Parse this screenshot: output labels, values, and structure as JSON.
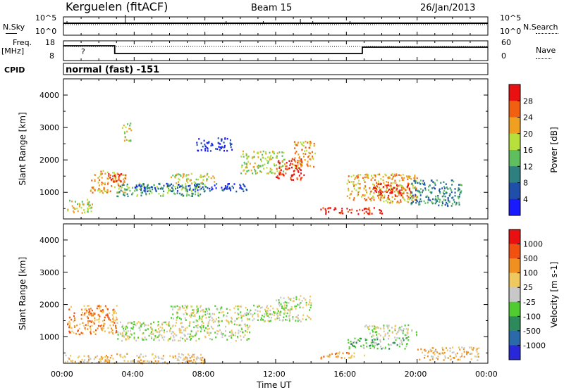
{
  "header": {
    "station": "Kerguelen (fitACF)",
    "beam": "Beam 15",
    "date": "26/Jan/2013"
  },
  "sky_panel": {
    "left_label": "N.Sky",
    "left_ticks": [
      "10^5",
      "10^0"
    ],
    "right_label": "N.Search",
    "right_ticks": [
      "10^5",
      "10^0"
    ]
  },
  "freq_panel": {
    "left_label_1": "Freq.",
    "left_label_2": "[MHz]",
    "left_ticks": [
      "18",
      "8"
    ],
    "right_label": "Nave",
    "right_ticks": [
      "60",
      "0"
    ],
    "question_mark": "?"
  },
  "cpid_panel": {
    "label": "CPID",
    "text": "normal (fast) -151"
  },
  "time_axis": {
    "ticks": [
      "00:00",
      "04:00",
      "08:00",
      "12:00",
      "16:00",
      "20:00",
      "00:00"
    ],
    "label": "Time UT"
  },
  "chart_data": [
    {
      "type": "heatmap",
      "name": "power-panel",
      "ylabel": "Slant Range [km]",
      "yticks": [
        1000,
        2000,
        3000,
        4000
      ],
      "ylim": [
        180,
        4500
      ],
      "xlim_hours": [
        0,
        24
      ],
      "colorbar": {
        "label": "Power [dB]",
        "ticks": [
          "4",
          "8",
          "12",
          "16",
          "20",
          "24",
          "28"
        ],
        "colors": [
          "#1a1aff",
          "#1f4fa8",
          "#2e7f7f",
          "#5fbf5f",
          "#b8e03c",
          "#f0a020",
          "#f06010",
          "#e81010"
        ]
      },
      "regions": [
        {
          "t0": 0.2,
          "t1": 1.6,
          "r0": 350,
          "r1": 800,
          "level": 4
        },
        {
          "t0": 1.5,
          "t1": 3.5,
          "r0": 1000,
          "r1": 1700,
          "level": 5
        },
        {
          "t0": 2.5,
          "t1": 3.3,
          "r0": 1300,
          "r1": 1600,
          "level": 7
        },
        {
          "t0": 3.0,
          "t1": 8.0,
          "r0": 900,
          "r1": 1300,
          "level": 3
        },
        {
          "t0": 4.0,
          "t1": 10.5,
          "r0": 1050,
          "r1": 1300,
          "level": 1
        },
        {
          "t0": 6.0,
          "t1": 8.5,
          "r0": 1300,
          "r1": 1600,
          "level": 4
        },
        {
          "t0": 10.0,
          "t1": 12.5,
          "r0": 1600,
          "r1": 2300,
          "level": 4
        },
        {
          "t0": 12.0,
          "t1": 13.6,
          "r0": 1400,
          "r1": 2100,
          "level": 7
        },
        {
          "t0": 13.0,
          "t1": 14.2,
          "r0": 1800,
          "r1": 2600,
          "level": 5
        },
        {
          "t0": 14.5,
          "t1": 18.0,
          "r0": 350,
          "r1": 550,
          "level": 7
        },
        {
          "t0": 16.0,
          "t1": 20.0,
          "r0": 700,
          "r1": 1600,
          "level": 5
        },
        {
          "t0": 17.5,
          "t1": 19.7,
          "r0": 900,
          "r1": 1300,
          "level": 7
        },
        {
          "t0": 19.5,
          "t1": 22.5,
          "r0": 600,
          "r1": 1400,
          "level": 2
        },
        {
          "t0": 7.5,
          "t1": 9.5,
          "r0": 2300,
          "r1": 2700,
          "level": 0
        },
        {
          "t0": 3.3,
          "t1": 3.8,
          "r0": 2600,
          "r1": 3200,
          "level": 4
        }
      ]
    },
    {
      "type": "heatmap",
      "name": "velocity-panel",
      "ylabel": "Slant Range [km]",
      "yticks": [
        1000,
        2000,
        3000,
        4000
      ],
      "ylim": [
        180,
        4500
      ],
      "xlim_hours": [
        0,
        24
      ],
      "colorbar": {
        "label": "Velocity [m s-1]",
        "ticks": [
          "1000",
          "500",
          "100",
          "25",
          "-25",
          "-100",
          "-500",
          "-1000"
        ],
        "colors": [
          "#2828d8",
          "#2a6aa8",
          "#2e8a5a",
          "#50cc30",
          "#c8c8c8",
          "#f0c860",
          "#f09020",
          "#f05010",
          "#e81010"
        ]
      },
      "regions": [
        {
          "t0": 0.2,
          "t1": 3.0,
          "r0": 1100,
          "r1": 2000,
          "level": 6
        },
        {
          "t0": 0.0,
          "t1": 8.0,
          "r0": 200,
          "r1": 500,
          "level": 5
        },
        {
          "t0": 3.0,
          "t1": 10.5,
          "r0": 900,
          "r1": 1500,
          "level": 4
        },
        {
          "t0": 6.0,
          "t1": 12.0,
          "r0": 1500,
          "r1": 2000,
          "level": 4
        },
        {
          "t0": 12.0,
          "t1": 14.0,
          "r0": 1500,
          "r1": 2300,
          "level": 4
        },
        {
          "t0": 14.5,
          "t1": 17.0,
          "r0": 350,
          "r1": 550,
          "level": 6
        },
        {
          "t0": 16.0,
          "t1": 19.5,
          "r0": 650,
          "r1": 1000,
          "level": 3
        },
        {
          "t0": 17.0,
          "t1": 20.0,
          "r0": 1000,
          "r1": 1400,
          "level": 4
        },
        {
          "t0": 20.0,
          "t1": 23.5,
          "r0": 300,
          "r1": 700,
          "level": 5
        }
      ]
    }
  ],
  "colors": {
    "axis": "#000000",
    "background": "#ffffff"
  }
}
